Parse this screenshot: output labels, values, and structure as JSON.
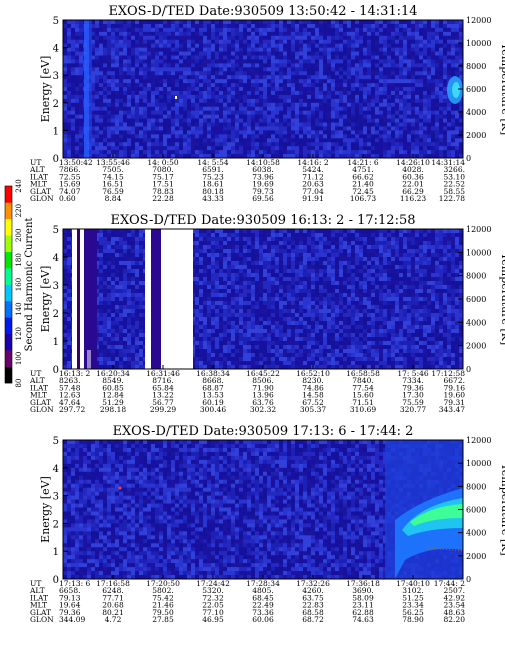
{
  "colorbar": {
    "label": "Second Harmonic Current",
    "ticks": [
      "80",
      "100",
      "120",
      "140",
      "160",
      "180",
      "200",
      "220",
      "240"
    ],
    "colors": [
      "#000000",
      "#6a006a",
      "#1c00a8",
      "#0018e8",
      "#0070ff",
      "#00c8ff",
      "#00ff90",
      "#00e800",
      "#a0ff00",
      "#ffff00",
      "#ff9000",
      "#ff0000"
    ]
  },
  "chart_data": [
    {
      "type": "heatmap",
      "title": "EXOS-D/TED   Date:930509  13:50:42 - 14:31:14",
      "ylabel": "Energy [eV]",
      "y2label": "Temperature [K]",
      "ylim": [
        0,
        5
      ],
      "y_ticks": [
        "0",
        "1",
        "2",
        "3",
        "4",
        "5"
      ],
      "y2lim": [
        0,
        12000
      ],
      "y2_ticks": [
        "0",
        "2000",
        "4000",
        "6000",
        "8000",
        "10000",
        "12000"
      ],
      "table_labels": [
        "UT",
        "ALT",
        "ILAT",
        "MLT",
        "GLAT",
        "GLON"
      ],
      "columns": [
        [
          "13:50:42",
          "7866.",
          "72.55",
          "15.69",
          "74.07",
          "0.60"
        ],
        [
          "13:55:46",
          "7505.",
          "74.15",
          "16.51",
          "76.59",
          "8.84"
        ],
        [
          "14: 0:50",
          "7080.",
          "75.17",
          "17.51",
          "78.83",
          "22.28"
        ],
        [
          "14: 5:54",
          "6591.",
          "75.23",
          "18.61",
          "80.18",
          "43.33"
        ],
        [
          "14:10:58",
          "6038.",
          "73.96",
          "19.69",
          "79.73",
          "69.56"
        ],
        [
          "14:16: 2",
          "5424.",
          "71.12",
          "20.63",
          "77.04",
          "91.91"
        ],
        [
          "14:21: 6",
          "4751.",
          "66.62",
          "21.40",
          "72.45",
          "106.73"
        ],
        [
          "14:26:10",
          "4028.",
          "60.36",
          "22.01",
          "66.29",
          "116.23"
        ],
        [
          "14:31:14",
          "3266.",
          "53.10",
          "22.52",
          "58.55",
          "122.78"
        ]
      ]
    },
    {
      "type": "heatmap",
      "title": "EXOS-D/TED   Date:930509  16:13: 2 - 17:12:58",
      "ylabel": "Energy [eV]",
      "y2label": "Temperature [K]",
      "ylim": [
        0,
        5
      ],
      "y_ticks": [
        "0",
        "1",
        "2",
        "3",
        "4",
        "5"
      ],
      "y2lim": [
        0,
        12000
      ],
      "y2_ticks": [
        "0",
        "2000",
        "4000",
        "6000",
        "8000",
        "10000",
        "12000"
      ],
      "table_labels": [
        "UT",
        "ALT",
        "ILAT",
        "MLT",
        "GLAT",
        "GLON"
      ],
      "columns": [
        [
          "16:13: 2",
          "8263.",
          "57.48",
          "12.63",
          "47.64",
          "297.72"
        ],
        [
          "16:20:34",
          "8549.",
          "60.85",
          "12.84",
          "51.29",
          "298.18"
        ],
        [
          "16:31:46",
          "8716.",
          "65.84",
          "13.22",
          "56.77",
          "299.29"
        ],
        [
          "16:38:34",
          "8668.",
          "68.87",
          "13.53",
          "60.19",
          "300.46"
        ],
        [
          "16:45:22",
          "8506.",
          "71.90",
          "13.96",
          "63.76",
          "302.32"
        ],
        [
          "16:52:10",
          "8230.",
          "74.86",
          "14.58",
          "67.52",
          "305.37"
        ],
        [
          "16:58:58",
          "7840.",
          "77.54",
          "15.60",
          "71.51",
          "310.69"
        ],
        [
          "17: 5:46",
          "7334.",
          "79.36",
          "17.30",
          "75.59",
          "320.77"
        ],
        [
          "17:12:58",
          "6672.",
          "79.16",
          "19.60",
          "79.31",
          "343.47"
        ]
      ]
    },
    {
      "type": "heatmap",
      "title": "EXOS-D/TED   Date:930509  17:13: 6 - 17:44: 2",
      "ylabel": "Energy [eV]",
      "y2label": "Temperature [K]",
      "ylim": [
        0,
        5
      ],
      "y_ticks": [
        "0",
        "1",
        "2",
        "3",
        "4",
        "5"
      ],
      "y2lim": [
        0,
        12000
      ],
      "y2_ticks": [
        "0",
        "2000",
        "4000",
        "6000",
        "8000",
        "10000",
        "12000"
      ],
      "table_labels": [
        "UT",
        "ALT",
        "ILAT",
        "MLT",
        "GLAT",
        "GLON"
      ],
      "columns": [
        [
          "17:13: 6",
          "6658.",
          "79.13",
          "19.64",
          "79.36",
          "344.09"
        ],
        [
          "17:16:58",
          "6248.",
          "77.71",
          "20.68",
          "80.21",
          "4.72"
        ],
        [
          "17:20:50",
          "5802.",
          "75.42",
          "21.46",
          "79.50",
          "27.85"
        ],
        [
          "17:24:42",
          "5320.",
          "72.32",
          "22.05",
          "77.10",
          "46.95"
        ],
        [
          "17:28:34",
          "4805.",
          "68.45",
          "22.49",
          "73.36",
          "60.06"
        ],
        [
          "17:32:26",
          "4260.",
          "63.75",
          "22.83",
          "68.58",
          "68.72"
        ],
        [
          "17:36:18",
          "3690.",
          "58.09",
          "23.11",
          "62.88",
          "74.63"
        ],
        [
          "17:40:10",
          "3102.",
          "51.25",
          "23.34",
          "56.25",
          "78.90"
        ],
        [
          "17:44: 2",
          "2507.",
          "42.92",
          "23.54",
          "48.63",
          "82.20"
        ]
      ]
    }
  ]
}
